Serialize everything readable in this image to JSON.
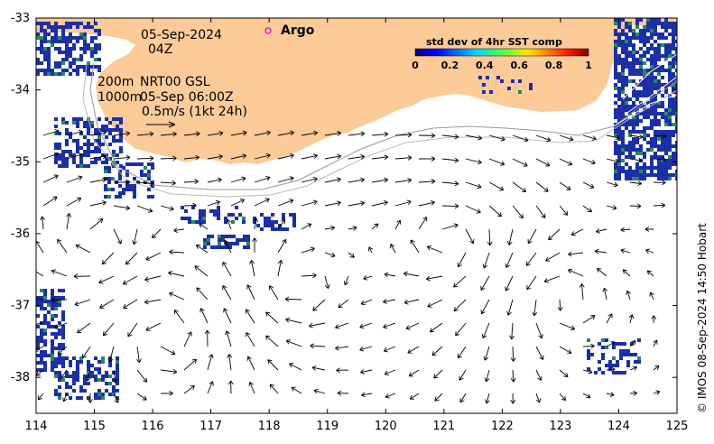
{
  "map": {
    "lon_range": [
      114,
      125
    ],
    "lat_range": [
      -38.5,
      -33
    ],
    "x_ticks": [
      "114",
      "115",
      "116",
      "117",
      "118",
      "119",
      "120",
      "121",
      "122",
      "123",
      "124",
      "125"
    ],
    "y_ticks": [
      "-33",
      "-34",
      "-35",
      "-36",
      "-37",
      "-38"
    ],
    "land_color": "#fccb98",
    "sst_color": "#1a2fa8",
    "argo_color": "#e820c8"
  },
  "annotations": {
    "date": "05-Sep-2024",
    "time": "04Z",
    "depth_line1": "200m",
    "depth_line2": "1000m",
    "source": "NRT00 GSL",
    "valid_time": "05-Sep 06:00Z",
    "scale": "0.5m/s (1kt 24h)",
    "argo_label": "Argo"
  },
  "colorbar": {
    "title": "std dev of 4hr SST comp",
    "ticks": [
      "0",
      "0.2",
      "0.4",
      "0.6",
      "0.8",
      "1"
    ]
  },
  "credit": "© IMOS 08-Sep-2024 14:50 Hobart"
}
